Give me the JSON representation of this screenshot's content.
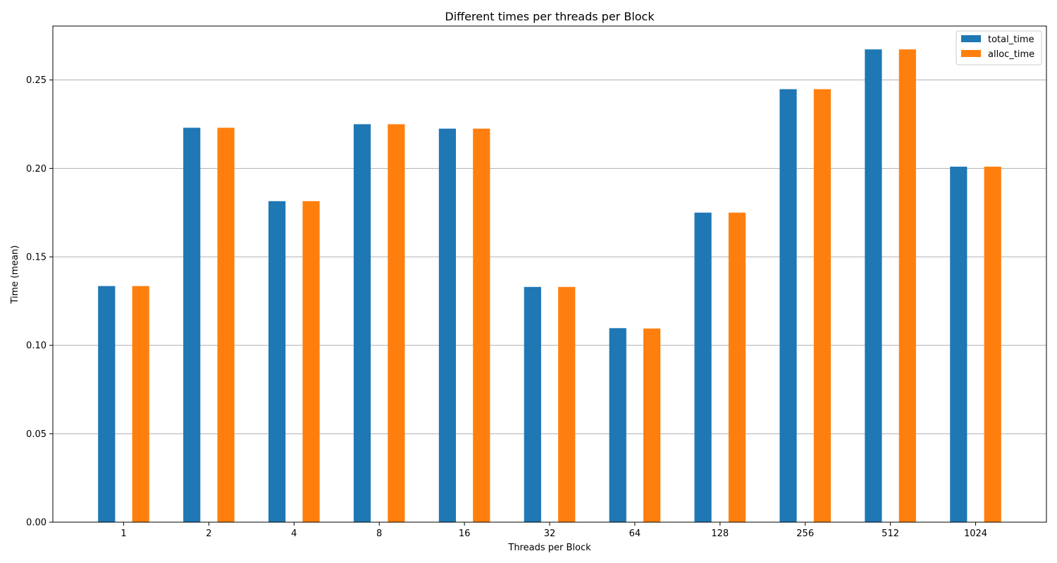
{
  "chart_data": {
    "type": "bar",
    "title": "Different times per threads per Block",
    "xlabel": "Threads per Block",
    "ylabel": "Time (mean)",
    "categories": [
      "1",
      "2",
      "4",
      "8",
      "16",
      "32",
      "64",
      "128",
      "256",
      "512",
      "1024"
    ],
    "series": [
      {
        "name": "total_time",
        "color": "#1f77b4",
        "values": [
          0.1335,
          0.223,
          0.1815,
          0.225,
          0.2225,
          0.133,
          0.1097,
          0.175,
          0.2448,
          0.2673,
          0.201
        ]
      },
      {
        "name": "alloc_time",
        "color": "#ff7f0e",
        "values": [
          0.1335,
          0.223,
          0.1815,
          0.225,
          0.2225,
          0.133,
          0.1095,
          0.175,
          0.2448,
          0.2673,
          0.201
        ]
      }
    ],
    "yticks": [
      "0.00",
      "0.05",
      "0.10",
      "0.15",
      "0.20",
      "0.25"
    ],
    "ylim": [
      0,
      0.2805
    ],
    "grid": "horizontal",
    "legend_position": "top-right"
  }
}
